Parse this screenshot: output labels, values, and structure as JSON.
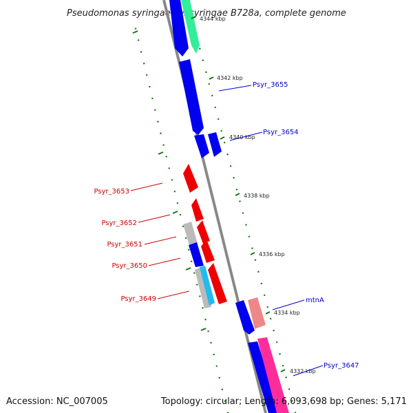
{
  "title": "Pseudomonas syringae pv. syringae B728a, complete genome",
  "footer": {
    "accession": "Accession: NC_007005",
    "summary": "Topology: circular; Length: 6,093,698 bp; Genes: 5,171"
  },
  "colors": {
    "backbone": "#888888",
    "forward_label": "#0000cc",
    "reverse_label": "#cc0000",
    "tick": "#117711"
  },
  "ticks": [
    {
      "kbp": 4344,
      "label": "4344 kbp"
    },
    {
      "kbp": 4342,
      "label": "4342 kbp"
    },
    {
      "kbp": 4340,
      "label": "4340 kbp"
    },
    {
      "kbp": 4338,
      "label": "4338 kbp"
    },
    {
      "kbp": 4336,
      "label": "4336 kbp"
    },
    {
      "kbp": 4334,
      "label": "4334 kbp"
    },
    {
      "kbp": 4332,
      "label": "4332 kbp"
    }
  ],
  "labels": [
    {
      "text": "Psyr_3655",
      "strand": "forward"
    },
    {
      "text": "Psyr_3654",
      "strand": "forward"
    },
    {
      "text": "Psyr_3653",
      "strand": "reverse"
    },
    {
      "text": "Psyr_3652",
      "strand": "reverse"
    },
    {
      "text": "Psyr_3651",
      "strand": "reverse"
    },
    {
      "text": "Psyr_3650",
      "strand": "reverse"
    },
    {
      "text": "Psyr_3649",
      "strand": "reverse"
    },
    {
      "text": "mtnA",
      "strand": "forward"
    },
    {
      "text": "Psyr_3647",
      "strand": "forward"
    }
  ]
}
